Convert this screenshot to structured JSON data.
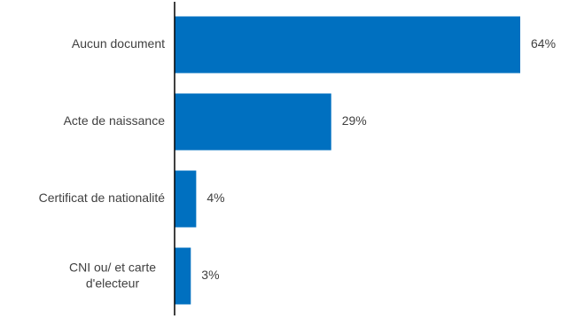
{
  "chart_data": {
    "type": "bar",
    "orientation": "horizontal",
    "categories": [
      [
        "Aucun document"
      ],
      [
        "Acte de naissance"
      ],
      [
        "Certificat de nationalité"
      ],
      [
        "CNI ou/ et carte",
        "d'electeur"
      ]
    ],
    "values": [
      64,
      29,
      4,
      3
    ],
    "value_labels": [
      "64%",
      "29%",
      "4%",
      "3%"
    ],
    "xlim": [
      0,
      64
    ],
    "grid": false,
    "legend": "none",
    "colors": {
      "bar": "#0070C0",
      "axis": "#000000",
      "text": "#404040"
    }
  }
}
